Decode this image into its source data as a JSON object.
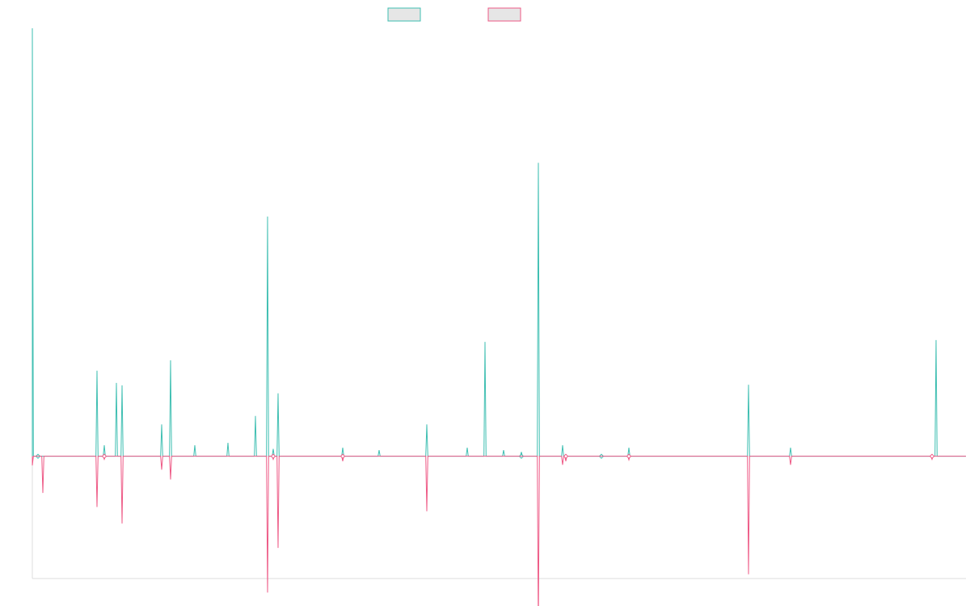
{
  "chart_data": {
    "type": "line",
    "title": "",
    "xlabel": "",
    "ylabel": "",
    "legend": "top-center",
    "grid": false,
    "ylim": [
      -200,
      700
    ],
    "series": [
      {
        "color": "#3fbfb2",
        "peaks": [
          [
            0,
            700
          ],
          [
            7,
            0
          ],
          [
            80,
            140
          ],
          [
            89,
            18
          ],
          [
            104,
            120
          ],
          [
            111,
            116
          ],
          [
            160,
            52
          ],
          [
            171,
            157
          ],
          [
            201,
            18
          ],
          [
            242,
            22
          ],
          [
            276,
            66
          ],
          [
            291,
            392
          ],
          [
            298,
            12
          ],
          [
            304,
            103
          ],
          [
            384,
            14
          ],
          [
            429,
            10
          ],
          [
            488,
            52
          ],
          [
            538,
            14
          ],
          [
            560,
            187
          ],
          [
            583,
            10
          ],
          [
            605,
            7
          ],
          [
            626,
            480
          ],
          [
            656,
            18
          ],
          [
            704,
            2
          ],
          [
            738,
            14
          ],
          [
            886,
            117
          ],
          [
            938,
            14
          ],
          [
            1118,
            190
          ]
        ]
      },
      {
        "color": "#ee5a86",
        "peaks": [
          [
            0,
            -15
          ],
          [
            13,
            -60
          ],
          [
            80,
            -83
          ],
          [
            89,
            -5
          ],
          [
            111,
            -110
          ],
          [
            160,
            -22
          ],
          [
            171,
            -38
          ],
          [
            291,
            -223
          ],
          [
            298,
            -5
          ],
          [
            304,
            -150
          ],
          [
            384,
            -8
          ],
          [
            488,
            -90
          ],
          [
            626,
            -280
          ],
          [
            656,
            -14
          ],
          [
            660,
            -8
          ],
          [
            738,
            -6
          ],
          [
            886,
            -193
          ],
          [
            938,
            -14
          ],
          [
            1113,
            -5
          ]
        ]
      }
    ],
    "x_range": [
      0,
      1155
    ]
  },
  "colors": {
    "series_a": "#3fbfb2",
    "series_b": "#ee5a86",
    "axis": "#dddddd"
  }
}
